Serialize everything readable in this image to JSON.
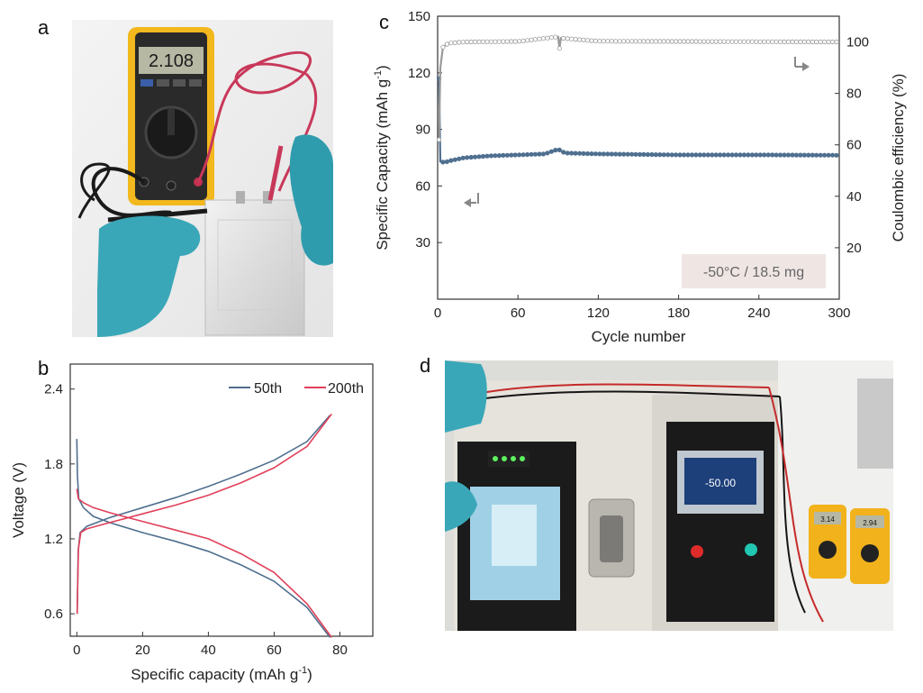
{
  "panels": {
    "a": {
      "letter": "a",
      "multimeter_reading": "2.108"
    },
    "b": {
      "letter": "b"
    },
    "c": {
      "letter": "c"
    },
    "d": {
      "letter": "d",
      "screen_reading": "-50.00",
      "meter1": "3.14",
      "meter2": "2.94"
    }
  },
  "colors": {
    "blue": "#4f6f8f",
    "red": "#e0405a",
    "gray": "#9a9a9a"
  },
  "chart_data": [
    {
      "type": "line",
      "panel": "b",
      "xlabel": "Specific capacity (mAh g",
      "xlabel_sup": "-1",
      "xlabel_end": ")",
      "ylabel": "Voltage (V)",
      "xlim": [
        -2,
        90
      ],
      "ylim": [
        0.42,
        2.6
      ],
      "xticks": [
        0,
        20,
        40,
        60,
        80
      ],
      "yticks": [
        0.6,
        1.2,
        1.8,
        2.4
      ],
      "legend_position": "top-right",
      "series": [
        {
          "name": "50th",
          "color": "#4f6f8f",
          "charge": [
            [
              0.1,
              0.6
            ],
            [
              0.4,
              1.1
            ],
            [
              1,
              1.25
            ],
            [
              3,
              1.3
            ],
            [
              10,
              1.37
            ],
            [
              20,
              1.45
            ],
            [
              30,
              1.53
            ],
            [
              40,
              1.62
            ],
            [
              50,
              1.72
            ],
            [
              60,
              1.83
            ],
            [
              70,
              1.98
            ],
            [
              77,
              2.19
            ]
          ],
          "discharge": [
            [
              0,
              2.0
            ],
            [
              0.2,
              1.7
            ],
            [
              0.6,
              1.52
            ],
            [
              2,
              1.45
            ],
            [
              5,
              1.38
            ],
            [
              10,
              1.33
            ],
            [
              20,
              1.25
            ],
            [
              30,
              1.18
            ],
            [
              40,
              1.1
            ],
            [
              50,
              0.99
            ],
            [
              60,
              0.86
            ],
            [
              70,
              0.65
            ],
            [
              77,
              0.41
            ]
          ]
        },
        {
          "name": "200th",
          "color": "#e0405a",
          "charge": [
            [
              0.1,
              0.6
            ],
            [
              0.5,
              1.12
            ],
            [
              1.2,
              1.25
            ],
            [
              3,
              1.28
            ],
            [
              10,
              1.33
            ],
            [
              20,
              1.4
            ],
            [
              30,
              1.47
            ],
            [
              40,
              1.55
            ],
            [
              50,
              1.65
            ],
            [
              60,
              1.77
            ],
            [
              70,
              1.94
            ],
            [
              77.5,
              2.2
            ]
          ],
          "discharge": [
            [
              0,
              1.6
            ],
            [
              0.5,
              1.52
            ],
            [
              2,
              1.49
            ],
            [
              5,
              1.45
            ],
            [
              10,
              1.41
            ],
            [
              20,
              1.34
            ],
            [
              30,
              1.27
            ],
            [
              40,
              1.2
            ],
            [
              50,
              1.08
            ],
            [
              60,
              0.93
            ],
            [
              70,
              0.68
            ],
            [
              77.5,
              0.41
            ]
          ]
        }
      ]
    },
    {
      "type": "scatter",
      "panel": "c",
      "xlabel": "Cycle number",
      "ylabel_left": "Specific Capacity (mAh g",
      "ylabel_left_sup": "-1",
      "ylabel_left_end": ")",
      "ylabel_right": "Coulombic efficiency (%)",
      "xlim": [
        0,
        300
      ],
      "ylim_left": [
        0,
        150
      ],
      "ylim_right": [
        0,
        110
      ],
      "xticks": [
        0,
        60,
        120,
        180,
        240,
        300
      ],
      "yticks_left": [
        30,
        60,
        90,
        120,
        150
      ],
      "yticks_right": [
        20,
        40,
        60,
        80,
        100
      ],
      "annotation": "-50°C / 18.5 mg",
      "series": [
        {
          "axis": "left",
          "color": "#4f6f8f",
          "points": [
            [
              1,
              117
            ],
            [
              2,
              73
            ],
            [
              5,
              72.5
            ],
            [
              10,
              73.5
            ],
            [
              20,
              75
            ],
            [
              40,
              76
            ],
            [
              60,
              76.5
            ],
            [
              80,
              77
            ],
            [
              90,
              79.5
            ],
            [
              95,
              77.5
            ],
            [
              120,
              77
            ],
            [
              180,
              76.5
            ],
            [
              240,
              76.5
            ],
            [
              300,
              76.3
            ]
          ]
        },
        {
          "axis": "right",
          "color": "#9a9a9a",
          "points": [
            [
              1,
              62
            ],
            [
              2,
              90
            ],
            [
              4,
              98
            ],
            [
              8,
              99.5
            ],
            [
              20,
              100
            ],
            [
              60,
              100.2
            ],
            [
              90,
              102
            ],
            [
              91,
              97.5
            ],
            [
              92,
              101.5
            ],
            [
              120,
              100.3
            ],
            [
              180,
              100.2
            ],
            [
              240,
              100.1
            ],
            [
              300,
              100
            ]
          ]
        }
      ]
    }
  ]
}
